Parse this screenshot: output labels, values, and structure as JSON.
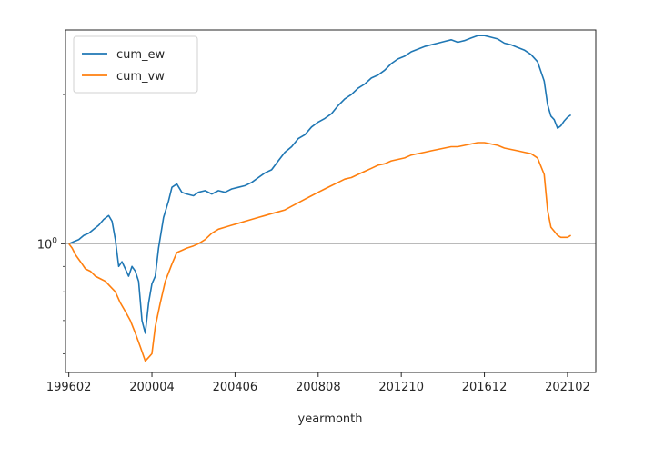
{
  "chart_data": {
    "type": "line",
    "title": "",
    "xlabel": "yearmonth",
    "ylabel": "",
    "x_axis": {
      "ticks": [
        "199602",
        "200004",
        "200406",
        "200808",
        "201210",
        "201612",
        "202102"
      ],
      "range": [
        "199512",
        "202207"
      ]
    },
    "y_axis": {
      "scale": "log",
      "range": [
        0.55,
        2.7
      ],
      "ticks": [
        1
      ],
      "tick_label_base": "10",
      "tick_label_exponent": "0"
    },
    "reference_line": {
      "y": 1,
      "color": "#b0b0b0"
    },
    "grid": false,
    "legend": {
      "placement": "top-left"
    },
    "series": [
      {
        "name": "cum_ew",
        "color": "#1f77b4",
        "points": [
          [
            "199602",
            1.0
          ],
          [
            "199605",
            1.01
          ],
          [
            "199608",
            1.02
          ],
          [
            "199611",
            1.04
          ],
          [
            "199702",
            1.05
          ],
          [
            "199705",
            1.07
          ],
          [
            "199708",
            1.09
          ],
          [
            "199711",
            1.12
          ],
          [
            "199802",
            1.14
          ],
          [
            "199804",
            1.11
          ],
          [
            "199806",
            1.02
          ],
          [
            "199808",
            0.9
          ],
          [
            "199810",
            0.92
          ],
          [
            "199812",
            0.89
          ],
          [
            "199902",
            0.86
          ],
          [
            "199904",
            0.9
          ],
          [
            "199906",
            0.88
          ],
          [
            "199908",
            0.84
          ],
          [
            "199910",
            0.7
          ],
          [
            "199912",
            0.66
          ],
          [
            "200002",
            0.76
          ],
          [
            "200004",
            0.83
          ],
          [
            "200006",
            0.86
          ],
          [
            "200008",
            0.98
          ],
          [
            "200011",
            1.13
          ],
          [
            "200102",
            1.22
          ],
          [
            "200104",
            1.3
          ],
          [
            "200107",
            1.32
          ],
          [
            "200110",
            1.27
          ],
          [
            "200201",
            1.26
          ],
          [
            "200205",
            1.25
          ],
          [
            "200208",
            1.27
          ],
          [
            "200212",
            1.28
          ],
          [
            "200304",
            1.26
          ],
          [
            "200308",
            1.28
          ],
          [
            "200312",
            1.27
          ],
          [
            "200404",
            1.29
          ],
          [
            "200408",
            1.3
          ],
          [
            "200412",
            1.31
          ],
          [
            "200504",
            1.33
          ],
          [
            "200508",
            1.36
          ],
          [
            "200512",
            1.39
          ],
          [
            "200604",
            1.41
          ],
          [
            "200608",
            1.47
          ],
          [
            "200612",
            1.53
          ],
          [
            "200704",
            1.57
          ],
          [
            "200708",
            1.63
          ],
          [
            "200712",
            1.66
          ],
          [
            "200804",
            1.72
          ],
          [
            "200808",
            1.76
          ],
          [
            "200812",
            1.79
          ],
          [
            "200904",
            1.83
          ],
          [
            "200908",
            1.9
          ],
          [
            "200912",
            1.96
          ],
          [
            "201004",
            2.0
          ],
          [
            "201008",
            2.06
          ],
          [
            "201012",
            2.1
          ],
          [
            "201104",
            2.16
          ],
          [
            "201108",
            2.19
          ],
          [
            "201112",
            2.24
          ],
          [
            "201204",
            2.31
          ],
          [
            "201208",
            2.36
          ],
          [
            "201212",
            2.39
          ],
          [
            "201304",
            2.44
          ],
          [
            "201308",
            2.47
          ],
          [
            "201312",
            2.5
          ],
          [
            "201404",
            2.52
          ],
          [
            "201408",
            2.54
          ],
          [
            "201412",
            2.56
          ],
          [
            "201504",
            2.58
          ],
          [
            "201508",
            2.55
          ],
          [
            "201512",
            2.57
          ],
          [
            "201604",
            2.6
          ],
          [
            "201608",
            2.63
          ],
          [
            "201612",
            2.63
          ],
          [
            "201704",
            2.61
          ],
          [
            "201708",
            2.59
          ],
          [
            "201712",
            2.54
          ],
          [
            "201804",
            2.52
          ],
          [
            "201808",
            2.49
          ],
          [
            "201812",
            2.46
          ],
          [
            "201904",
            2.41
          ],
          [
            "201908",
            2.33
          ],
          [
            "201912",
            2.13
          ],
          [
            "202002",
            1.91
          ],
          [
            "202004",
            1.81
          ],
          [
            "202006",
            1.78
          ],
          [
            "202008",
            1.71
          ],
          [
            "202010",
            1.73
          ],
          [
            "202012",
            1.77
          ],
          [
            "202102",
            1.8
          ],
          [
            "202104",
            1.82
          ]
        ]
      },
      {
        "name": "cum_vw",
        "color": "#ff7f0e",
        "points": [
          [
            "199602",
            1.0
          ],
          [
            "199604",
            0.98
          ],
          [
            "199606",
            0.95
          ],
          [
            "199608",
            0.93
          ],
          [
            "199610",
            0.91
          ],
          [
            "199612",
            0.89
          ],
          [
            "199703",
            0.88
          ],
          [
            "199706",
            0.86
          ],
          [
            "199709",
            0.85
          ],
          [
            "199712",
            0.84
          ],
          [
            "199803",
            0.82
          ],
          [
            "199806",
            0.8
          ],
          [
            "199809",
            0.76
          ],
          [
            "199812",
            0.73
          ],
          [
            "199903",
            0.7
          ],
          [
            "199906",
            0.66
          ],
          [
            "199909",
            0.62
          ],
          [
            "199912",
            0.58
          ],
          [
            "200002",
            0.59
          ],
          [
            "200004",
            0.6
          ],
          [
            "200006",
            0.68
          ],
          [
            "200009",
            0.76
          ],
          [
            "200012",
            0.84
          ],
          [
            "200104",
            0.91
          ],
          [
            "200107",
            0.96
          ],
          [
            "200110",
            0.97
          ],
          [
            "200201",
            0.98
          ],
          [
            "200205",
            0.99
          ],
          [
            "200208",
            1.0
          ],
          [
            "200212",
            1.02
          ],
          [
            "200304",
            1.05
          ],
          [
            "200308",
            1.07
          ],
          [
            "200312",
            1.08
          ],
          [
            "200404",
            1.09
          ],
          [
            "200408",
            1.1
          ],
          [
            "200412",
            1.11
          ],
          [
            "200504",
            1.12
          ],
          [
            "200508",
            1.13
          ],
          [
            "200512",
            1.14
          ],
          [
            "200604",
            1.15
          ],
          [
            "200608",
            1.16
          ],
          [
            "200612",
            1.17
          ],
          [
            "200704",
            1.19
          ],
          [
            "200708",
            1.21
          ],
          [
            "200712",
            1.23
          ],
          [
            "200804",
            1.25
          ],
          [
            "200808",
            1.27
          ],
          [
            "200812",
            1.29
          ],
          [
            "200904",
            1.31
          ],
          [
            "200908",
            1.33
          ],
          [
            "200912",
            1.35
          ],
          [
            "201004",
            1.36
          ],
          [
            "201008",
            1.38
          ],
          [
            "201012",
            1.4
          ],
          [
            "201104",
            1.42
          ],
          [
            "201108",
            1.44
          ],
          [
            "201112",
            1.45
          ],
          [
            "201204",
            1.47
          ],
          [
            "201208",
            1.48
          ],
          [
            "201212",
            1.49
          ],
          [
            "201304",
            1.51
          ],
          [
            "201308",
            1.52
          ],
          [
            "201312",
            1.53
          ],
          [
            "201404",
            1.54
          ],
          [
            "201408",
            1.55
          ],
          [
            "201412",
            1.56
          ],
          [
            "201504",
            1.57
          ],
          [
            "201508",
            1.57
          ],
          [
            "201512",
            1.58
          ],
          [
            "201604",
            1.59
          ],
          [
            "201608",
            1.6
          ],
          [
            "201612",
            1.6
          ],
          [
            "201704",
            1.59
          ],
          [
            "201708",
            1.58
          ],
          [
            "201712",
            1.56
          ],
          [
            "201804",
            1.55
          ],
          [
            "201808",
            1.54
          ],
          [
            "201812",
            1.53
          ],
          [
            "201904",
            1.52
          ],
          [
            "201908",
            1.49
          ],
          [
            "201912",
            1.38
          ],
          [
            "202002",
            1.17
          ],
          [
            "202004",
            1.08
          ],
          [
            "202006",
            1.06
          ],
          [
            "202008",
            1.04
          ],
          [
            "202010",
            1.03
          ],
          [
            "202012",
            1.03
          ],
          [
            "202102",
            1.03
          ],
          [
            "202104",
            1.04
          ]
        ]
      }
    ]
  }
}
